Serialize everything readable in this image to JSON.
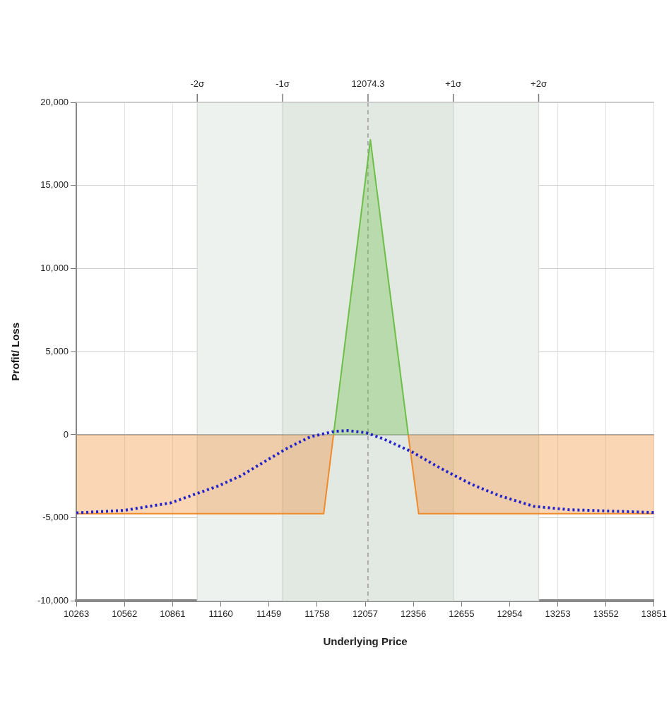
{
  "chart_data": {
    "type": "area",
    "xlabel": "Underlying Price",
    "ylabel": "Profit/ Loss",
    "xlim": [
      10263,
      13851
    ],
    "xticks": [
      10263,
      10562,
      10861,
      11160,
      11459,
      11758,
      12057,
      12356,
      12655,
      12954,
      13253,
      13552,
      13851
    ],
    "ylim": [
      -10000,
      20000
    ],
    "yticks": [
      {
        "value": -10000,
        "label": "-10,000"
      },
      {
        "value": -5000,
        "label": "-5,000"
      },
      0,
      {
        "value": 5000,
        "label": "5,000"
      },
      {
        "value": 10000,
        "label": "10,000"
      },
      {
        "value": 15000,
        "label": "15,000"
      },
      {
        "value": 20000,
        "label": "20,000"
      }
    ],
    "grid": true,
    "legend": false,
    "marker": "none",
    "bands": [
      {
        "axis": "x",
        "from": 11014,
        "to": 13134,
        "color": "#eef2ef"
      },
      {
        "axis": "x",
        "from": 11544,
        "to": 12604,
        "color": "#e2e9e3"
      }
    ],
    "ref_lines": [
      {
        "axis": "x",
        "value": 11014,
        "label": "-2σ",
        "color": "#d8dfd9",
        "line_style": "solid"
      },
      {
        "axis": "x",
        "value": 11544,
        "label": "-1σ",
        "color": "#d0d8d1",
        "line_style": "solid"
      },
      {
        "axis": "x",
        "value": 12604,
        "label": "+1σ",
        "color": "#d0d8d1",
        "line_style": "solid"
      },
      {
        "axis": "x",
        "value": 13134,
        "label": "+2σ",
        "color": "#d8dfd9",
        "line_style": "solid"
      },
      {
        "axis": "x",
        "value": 12074.3,
        "label": "12074.3",
        "color": "#9a9a9a",
        "line_style": "dashed"
      },
      {
        "axis": "y",
        "value": 0,
        "color": "#9a9a9a",
        "line_style": "solid"
      }
    ],
    "series": [
      {
        "color": "#f08a2a",
        "x": [
          10263,
          11799,
          11860,
          12090,
          12324,
          12389,
          13851
        ],
        "values": [
          -4750,
          -4750,
          0,
          null,
          0,
          -4750,
          -4750
        ]
      },
      {
        "color": "#6cbf45",
        "x": [
          11860,
          12089,
          12324
        ],
        "values": [
          0,
          17750,
          0
        ]
      },
      {
        "type": "line",
        "color": "#2222cc",
        "line_style": "dotted",
        "x": [
          10263,
          10561,
          10849,
          11139,
          11283,
          11430,
          11573,
          11717,
          11864,
          11950,
          12063,
          12167,
          12341,
          12528,
          12714,
          12888,
          13105,
          13322,
          13851
        ],
        "values": [
          -4700,
          -4550,
          -4100,
          -3100,
          -2480,
          -1630,
          -810,
          -120,
          200,
          250,
          120,
          -240,
          -1000,
          -2030,
          -2970,
          -3660,
          -4310,
          -4510,
          -4680
        ]
      }
    ]
  }
}
